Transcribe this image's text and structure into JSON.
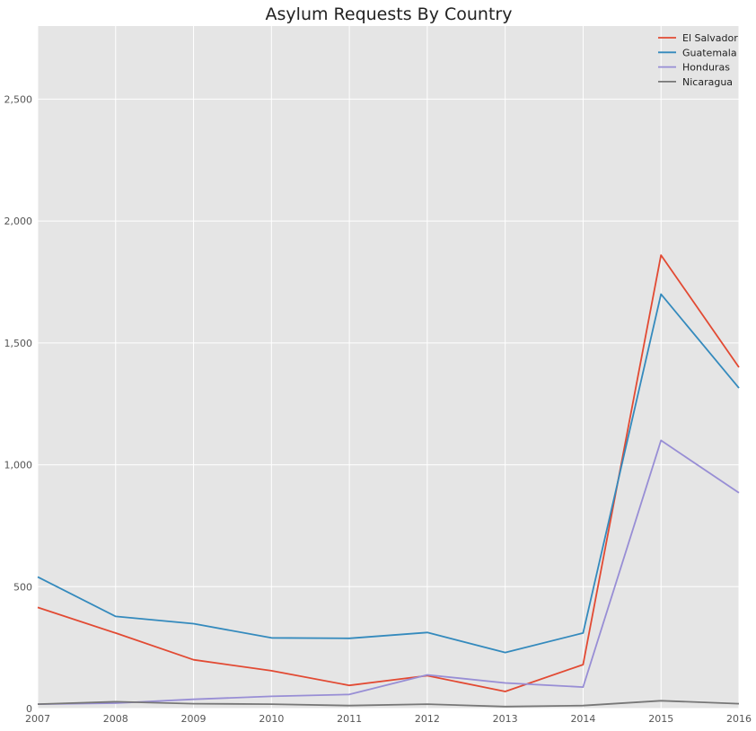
{
  "chart_data": {
    "type": "line",
    "title": "Asylum Requests By Country",
    "xlabel": "",
    "ylabel": "",
    "x": [
      "2007",
      "2008",
      "2009",
      "2010",
      "2011",
      "2012",
      "2013",
      "2014",
      "2015",
      "2016"
    ],
    "xlim": [
      2007,
      2016
    ],
    "ylim": [
      0,
      2800
    ],
    "yticks": [
      0,
      500,
      1000,
      1500,
      2000,
      2500
    ],
    "ytick_labels": [
      "0",
      "500",
      "1,000",
      "1,500",
      "2,000",
      "2,500"
    ],
    "grid": true,
    "legend_position": "top-right",
    "series": [
      {
        "name": "El Salvador",
        "color": "#E24A33",
        "values": [
          415,
          310,
          200,
          155,
          95,
          135,
          70,
          180,
          1860,
          1400
        ]
      },
      {
        "name": "Guatemala",
        "color": "#348ABD",
        "values": [
          540,
          378,
          348,
          290,
          288,
          312,
          230,
          310,
          1700,
          1315
        ]
      },
      {
        "name": "Honduras",
        "color": "#988ED5",
        "values": [
          18,
          22,
          38,
          50,
          58,
          138,
          105,
          88,
          1100,
          885
        ]
      },
      {
        "name": "Nicaragua",
        "color": "#777777",
        "values": [
          18,
          28,
          20,
          18,
          12,
          18,
          8,
          12,
          32,
          20
        ]
      }
    ]
  }
}
